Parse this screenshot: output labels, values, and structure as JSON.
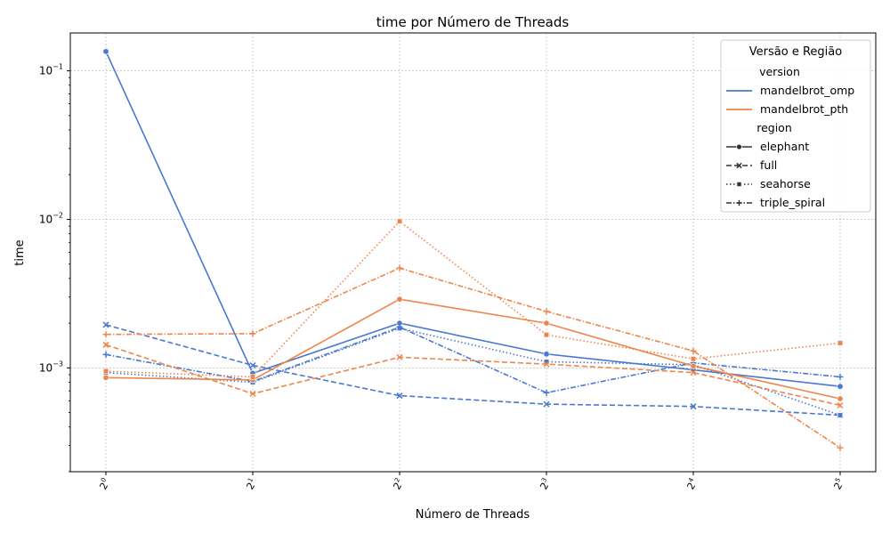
{
  "chart_data": {
    "type": "line",
    "title": "time por Número de Threads",
    "xlabel": "Número de Threads",
    "ylabel": "time",
    "yscale": "log",
    "ylim": [
      0.0002,
      0.18
    ],
    "grid": true,
    "x": [
      1,
      2,
      4,
      8,
      16,
      32
    ],
    "x_tick_labels": [
      {
        "base": "2",
        "exp": "0"
      },
      {
        "base": "2",
        "exp": "1"
      },
      {
        "base": "2",
        "exp": "2"
      },
      {
        "base": "2",
        "exp": "3"
      },
      {
        "base": "2",
        "exp": "4"
      },
      {
        "base": "2",
        "exp": "5"
      }
    ],
    "y_ticks": [
      {
        "value": 0.001,
        "base": "10",
        "exp": "−3"
      },
      {
        "value": 0.01,
        "base": "10",
        "exp": "−2"
      },
      {
        "value": 0.1,
        "base": "10",
        "exp": "−1"
      }
    ],
    "legend": {
      "title": "Versão e Região",
      "placement": "top-right",
      "version_header": "version",
      "region_header": "region",
      "versions": [
        {
          "name": "mandelbrot_omp",
          "color": "#4878d0"
        },
        {
          "name": "mandelbrot_pth",
          "color": "#ee854a"
        }
      ],
      "regions": [
        {
          "name": "elephant",
          "dash": "solid",
          "marker": "circle"
        },
        {
          "name": "full",
          "dash": "dashed",
          "marker": "x"
        },
        {
          "name": "seahorse",
          "dash": "dotted",
          "marker": "square"
        },
        {
          "name": "triple_spiral",
          "dash": "dashdot",
          "marker": "plus"
        }
      ]
    },
    "series": [
      {
        "version": "mandelbrot_omp",
        "region": "elephant",
        "values": [
          0.135,
          0.00092,
          0.002,
          0.00124,
          0.00097,
          0.00075
        ]
      },
      {
        "version": "mandelbrot_omp",
        "region": "full",
        "values": [
          0.00195,
          0.00104,
          0.00065,
          0.00057,
          0.00055,
          0.00048
        ]
      },
      {
        "version": "mandelbrot_omp",
        "region": "seahorse",
        "values": [
          0.00093,
          0.0008,
          0.00185,
          0.0011,
          0.00105,
          0.00048
        ]
      },
      {
        "version": "mandelbrot_omp",
        "region": "triple_spiral",
        "values": [
          0.00123,
          0.00081,
          0.00188,
          0.00068,
          0.00108,
          0.00087
        ]
      },
      {
        "version": "mandelbrot_pth",
        "region": "elephant",
        "values": [
          0.00086,
          0.00083,
          0.0029,
          0.002,
          0.00103,
          0.00062
        ]
      },
      {
        "version": "mandelbrot_pth",
        "region": "full",
        "values": [
          0.00143,
          0.00067,
          0.00118,
          0.00106,
          0.00093,
          0.00056
        ]
      },
      {
        "version": "mandelbrot_pth",
        "region": "seahorse",
        "values": [
          0.00095,
          0.00087,
          0.0097,
          0.00167,
          0.00115,
          0.00147
        ]
      },
      {
        "version": "mandelbrot_pth",
        "region": "triple_spiral",
        "values": [
          0.00168,
          0.0017,
          0.0047,
          0.0024,
          0.0013,
          0.00029
        ]
      }
    ]
  }
}
